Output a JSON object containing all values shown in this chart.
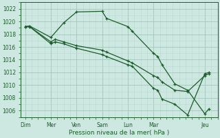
{
  "title": "Pression niveau de la mer( hPa )",
  "bg_color": "#cde8e0",
  "grid_color_major": "#9dbfb5",
  "grid_color_minor": "#b8d8d0",
  "line_color": "#1a5c2a",
  "ylim": [
    1005,
    1023
  ],
  "x_labels": [
    "Dim",
    "Mer",
    "Ven",
    "Sam",
    "Lun",
    "Mar",
    "Jeu"
  ],
  "x_tick_pos": [
    0,
    3,
    6,
    9,
    12,
    15,
    21
  ],
  "xlim": [
    -0.5,
    22.5
  ],
  "line1_x": [
    0,
    0.5,
    3,
    4.5,
    6,
    9,
    9.5,
    12,
    12.5,
    15,
    15.5,
    16,
    17.5,
    19,
    21,
    21.5
  ],
  "line1_y": [
    1019.2,
    1019.3,
    1017.5,
    1019.8,
    1021.5,
    1021.6,
    1020.5,
    1019.2,
    1018.5,
    1015.0,
    1014.5,
    1013.2,
    1010.2,
    1009.2,
    1005.5,
    1006.3
  ],
  "line2_x": [
    0,
    0.5,
    3,
    3.5,
    4.5,
    6,
    9,
    9.5,
    12,
    12.5,
    15,
    15.5,
    16,
    17.5,
    19,
    21,
    21.5
  ],
  "line2_y": [
    1019.2,
    1019.2,
    1016.8,
    1017.2,
    1016.8,
    1016.2,
    1015.5,
    1015.2,
    1013.8,
    1013.5,
    1011.5,
    1011.2,
    1010.5,
    1009.2,
    1009.0,
    1011.5,
    1011.8
  ],
  "line3_x": [
    0,
    0.5,
    3,
    3.5,
    4.5,
    6,
    9,
    9.5,
    12,
    12.5,
    15,
    15.5,
    16,
    17.5,
    19,
    21,
    21.5
  ],
  "line3_y": [
    1019.2,
    1019.2,
    1016.5,
    1016.8,
    1016.5,
    1015.8,
    1014.8,
    1014.5,
    1013.2,
    1013.0,
    1009.5,
    1009.2,
    1007.8,
    1007.0,
    1005.3,
    1011.8,
    1012.0
  ]
}
